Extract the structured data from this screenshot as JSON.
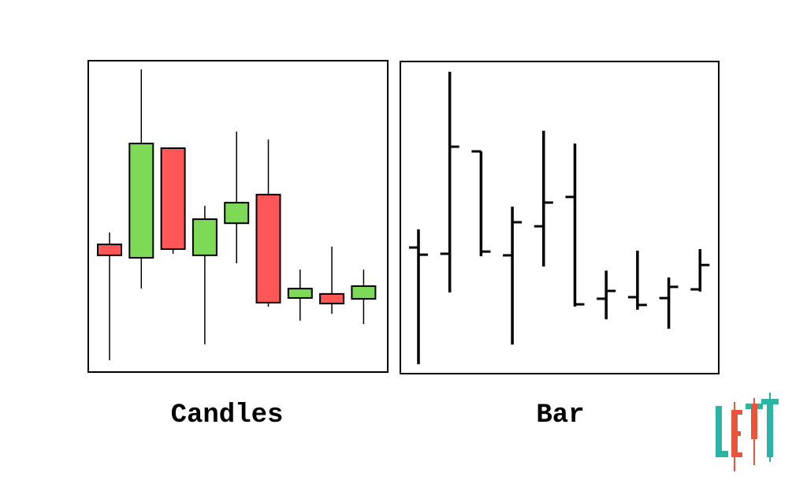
{
  "chart_data": [
    {
      "type": "candlestick",
      "title": "Candles",
      "open": [
        41.0,
        36.7,
        71.9,
        37.5,
        47.8,
        57.0,
        23.8,
        25.1,
        23.5
      ],
      "high": [
        44.8,
        97.2,
        71.9,
        53.4,
        77.2,
        74.7,
        32.9,
        40.3,
        32.9
      ],
      "low": [
        3.8,
        26.8,
        38.0,
        8.9,
        34.9,
        21.0,
        16.5,
        18.7,
        15.4
      ],
      "close": [
        37.5,
        73.4,
        39.5,
        49.1,
        54.4,
        22.3,
        26.8,
        22.0,
        27.6
      ],
      "up_color": "#7ed957",
      "down_color": "#ff5757",
      "ylim": [
        0,
        100
      ]
    },
    {
      "type": "ohlc",
      "title": "Bar",
      "open": [
        40.4,
        38.4,
        71.2,
        37.9,
        47.2,
        56.6,
        24.0,
        24.5,
        24.2,
        27.0
      ],
      "high": [
        46.2,
        96.7,
        71.2,
        53.5,
        77.8,
        73.7,
        33.0,
        39.4,
        30.8,
        39.9
      ],
      "low": [
        3.0,
        26.0,
        37.6,
        9.3,
        34.3,
        21.5,
        17.4,
        20.5,
        14.4,
        26.3
      ],
      "close": [
        38.1,
        72.7,
        39.1,
        48.5,
        54.8,
        22.2,
        26.5,
        22.0,
        27.8,
        34.8
      ],
      "color": "#000000",
      "ylim": [
        0,
        100
      ]
    }
  ]
}
